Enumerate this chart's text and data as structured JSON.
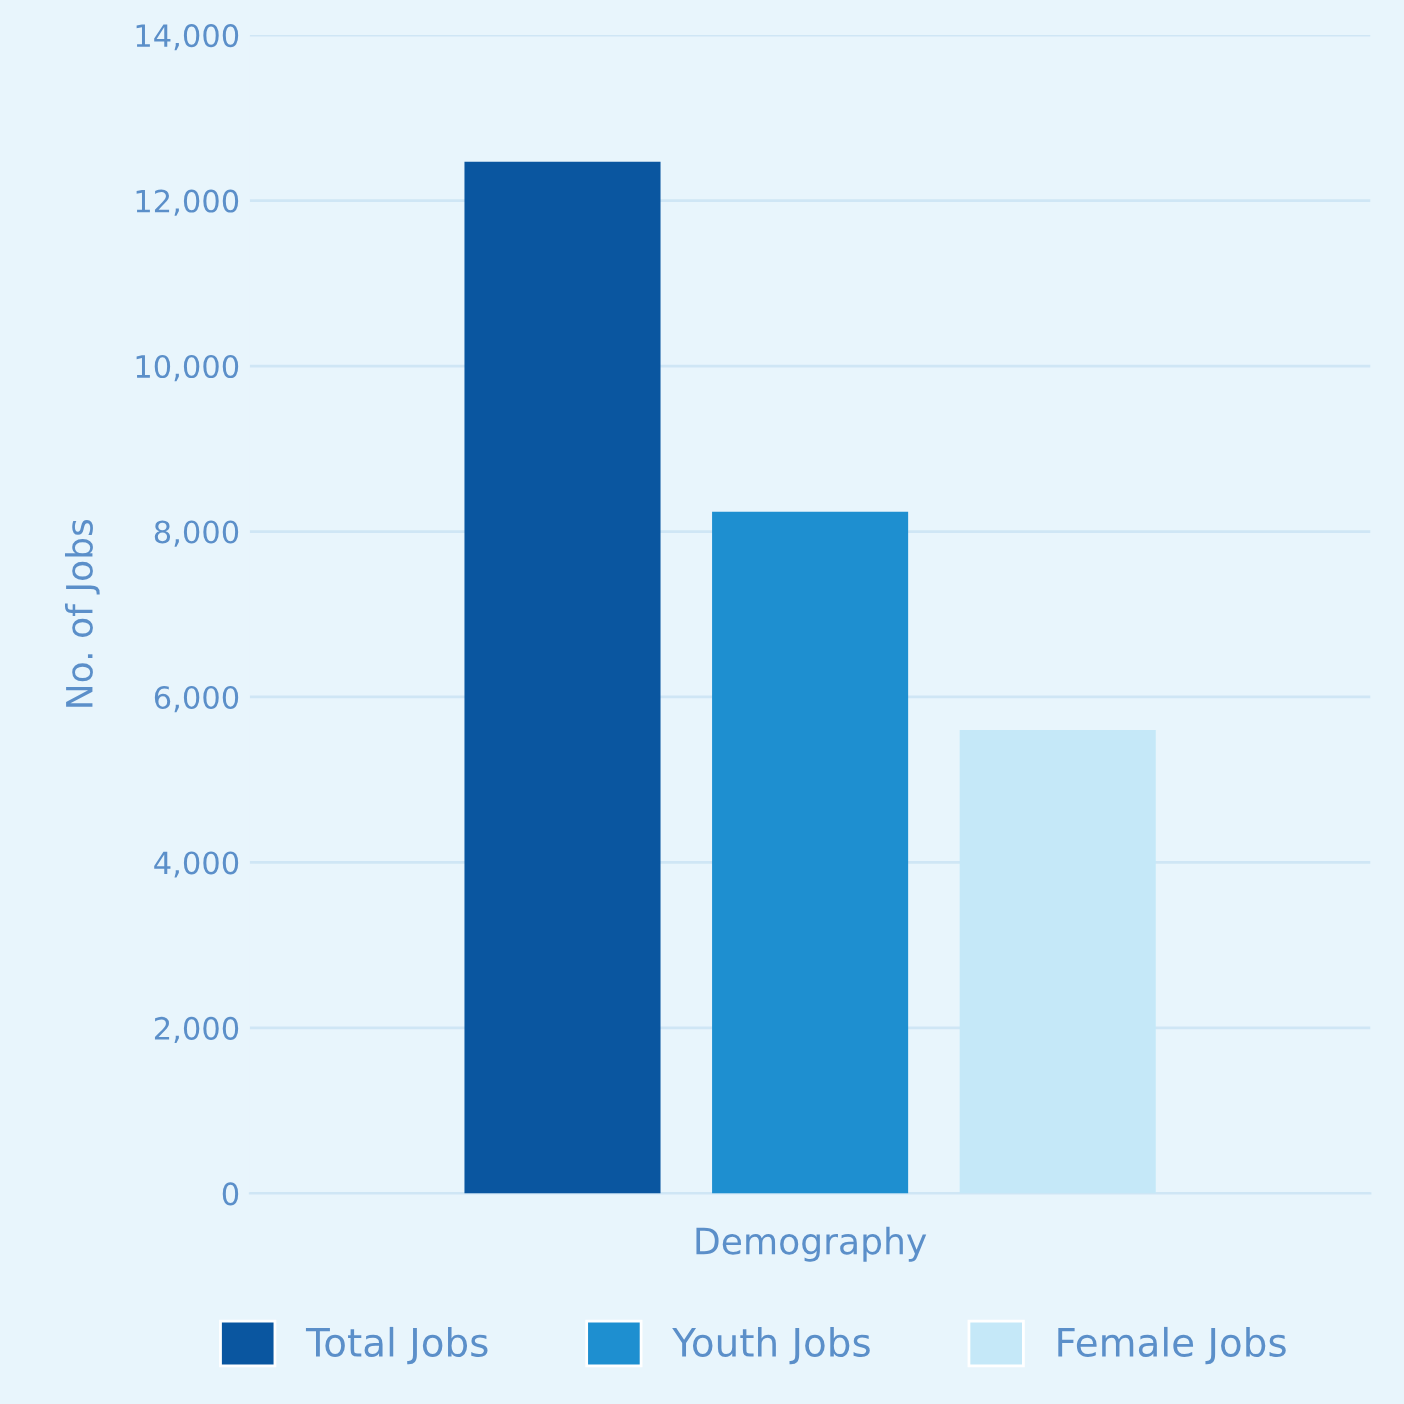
{
  "chart_data": {
    "type": "bar",
    "ylabel": "No. of Jobs",
    "categories": [
      "Demography"
    ],
    "series": [
      {
        "name": "Total Jobs",
        "color": "#0a56a0",
        "values": [
          12470
        ]
      },
      {
        "name": "Youth Jobs",
        "color": "#1e8fd0",
        "values": [
          8240
        ]
      },
      {
        "name": "Female Jobs",
        "color": "#c5e8f8",
        "values": [
          5600
        ]
      }
    ],
    "ylim": [
      0,
      14000
    ],
    "yticks": [
      0,
      {
        "value": 2000,
        "label": "2,000"
      },
      {
        "value": 4000,
        "label": "4,000"
      },
      {
        "value": 6000,
        "label": "6,000"
      },
      {
        "value": 8000,
        "label": "8,000"
      },
      {
        "value": 10000,
        "label": "10,000"
      },
      {
        "value": 12000,
        "label": "12,000"
      },
      {
        "value": 14000,
        "label": "14,000"
      }
    ],
    "grid": "y",
    "legend": "bottom"
  }
}
